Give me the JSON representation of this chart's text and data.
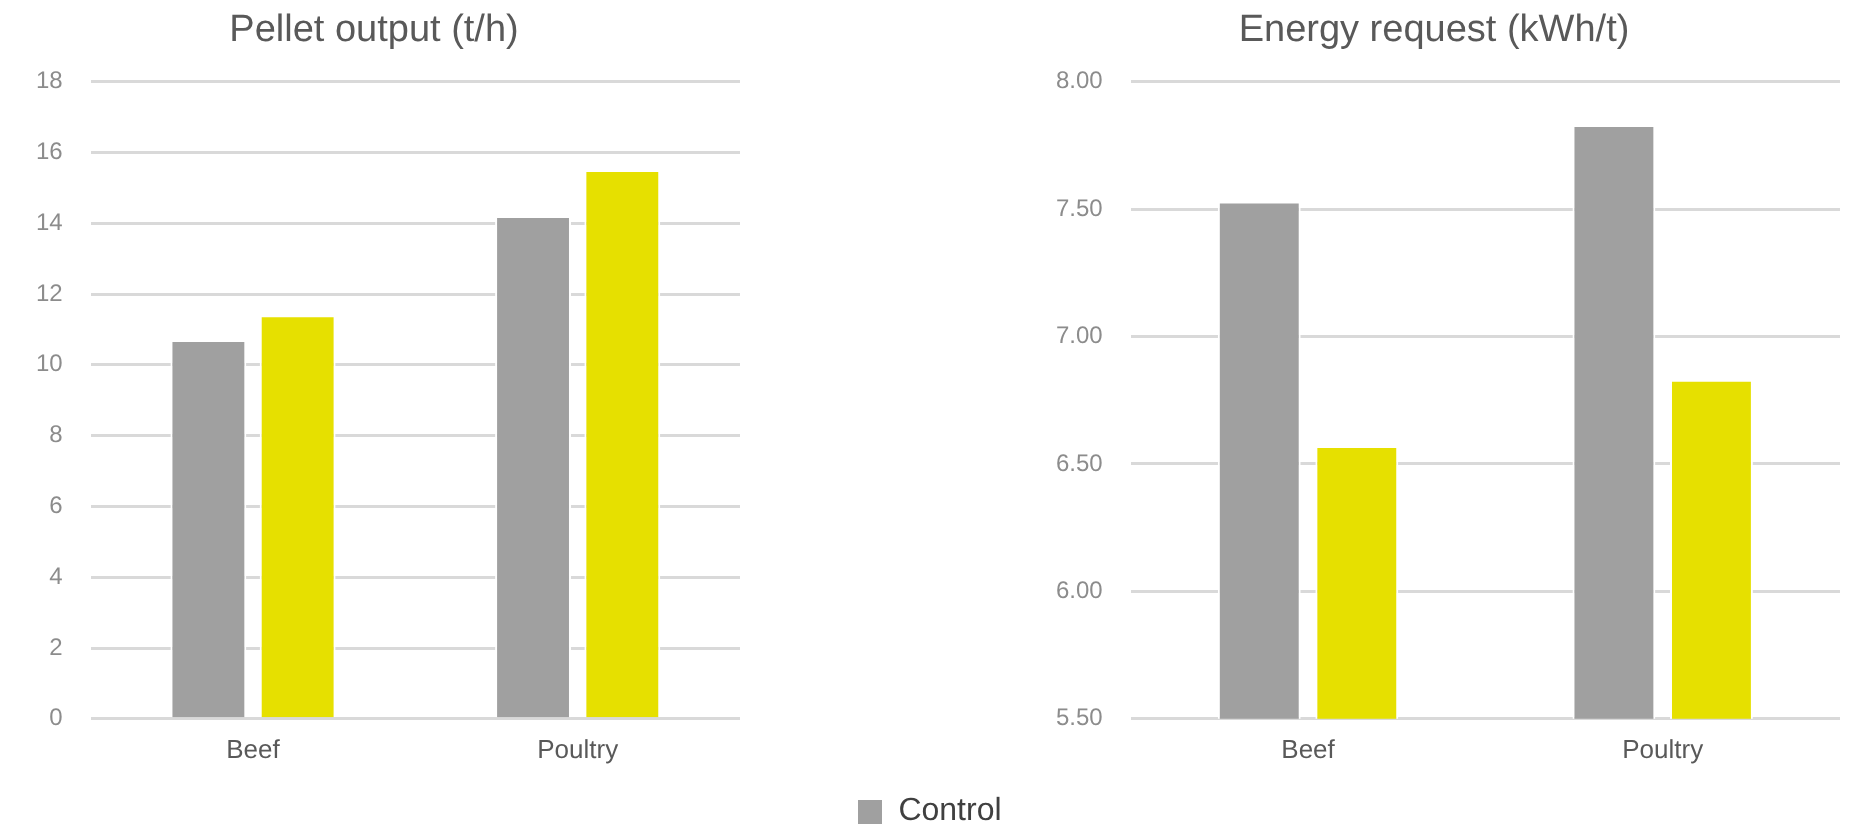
{
  "chart_data": [
    {
      "type": "bar",
      "title": "Pellet output (t/h)",
      "categories": [
        "Beef",
        "Poultry"
      ],
      "series": [
        {
          "name": "Control",
          "color": "#a0a0a0",
          "values": [
            10.7,
            14.2
          ]
        },
        {
          "color": "#e6e000",
          "values": [
            11.4,
            15.5
          ]
        }
      ],
      "ylim": [
        0,
        18
      ],
      "yticks": [
        0,
        2,
        4,
        6,
        8,
        10,
        12,
        14,
        16,
        18
      ],
      "grid": "y",
      "legend": "bottom"
    },
    {
      "type": "bar",
      "title": "Energy request (kWh/t)",
      "categories": [
        "Beef",
        "Poultry"
      ],
      "series": [
        {
          "name": "Control",
          "color": "#a0a0a0",
          "values": [
            7.53,
            7.83
          ]
        },
        {
          "color": "#e6e000",
          "values": [
            6.57,
            6.83
          ]
        }
      ],
      "legend": "bottom",
      "ylim": [
        5.5,
        8
      ],
      "yticks": [
        {
          "value": 5.5,
          "label": "5.50"
        },
        {
          "value": 6,
          "label": "6.00"
        },
        {
          "value": 6.5,
          "label": "6.50"
        },
        {
          "value": 7,
          "label": "7.00"
        },
        {
          "value": 7.5,
          "label": "7.50"
        },
        {
          "value": 8,
          "label": "8.00"
        }
      ],
      "grid": "y"
    }
  ]
}
